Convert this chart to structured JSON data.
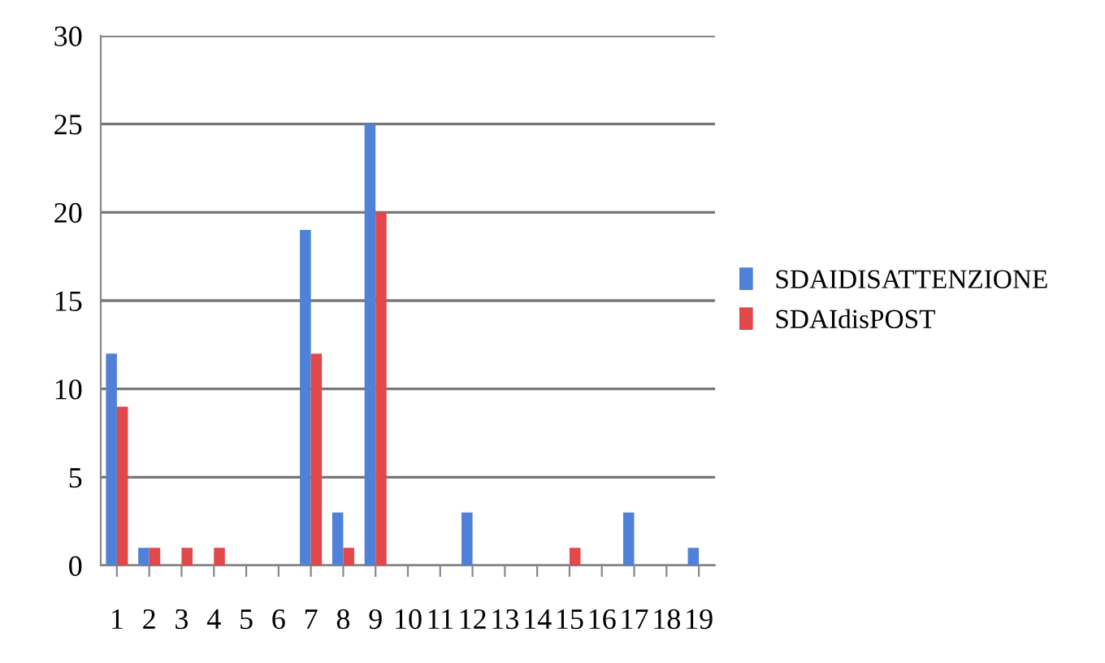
{
  "chart_data": {
    "type": "bar",
    "categories": [
      "1",
      "2",
      "3",
      "4",
      "5",
      "6",
      "7",
      "8",
      "9",
      "10",
      "11",
      "12",
      "13",
      "14",
      "15",
      "16",
      "17",
      "18",
      "19"
    ],
    "series": [
      {
        "name": "SDAIDISATTENZIONE",
        "color": "#4f81d8",
        "values": [
          12,
          1,
          0,
          0,
          0,
          0,
          19,
          3,
          25,
          0,
          0,
          3,
          0,
          0,
          0,
          0,
          3,
          0,
          1
        ]
      },
      {
        "name": "SDAIdisPOST",
        "color": "#e0484a",
        "values": [
          9,
          1,
          1,
          1,
          0,
          0,
          12,
          1,
          20,
          0,
          0,
          0,
          0,
          0,
          1,
          0,
          0,
          0,
          0
        ]
      }
    ],
    "ylim": [
      0,
      30
    ],
    "yticks": [
      0,
      5,
      10,
      15,
      20,
      25,
      30
    ],
    "grid": "y",
    "legend": "right"
  }
}
